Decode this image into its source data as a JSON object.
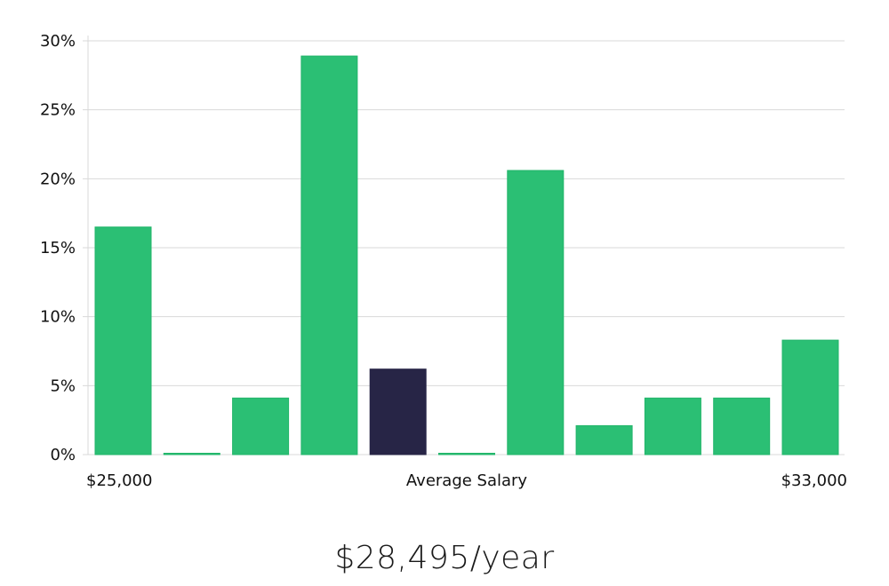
{
  "chart_data": {
    "type": "bar",
    "xlabel": "Average Salary",
    "x_min_label": "$25,000",
    "x_max_label": "$33,000",
    "ylim": [
      0,
      30
    ],
    "yticks": [
      0,
      5,
      10,
      15,
      20,
      25,
      30
    ],
    "ytick_labels": [
      "0%",
      "5%",
      "10%",
      "15%",
      "20%",
      "25%",
      "30%"
    ],
    "grid": true,
    "values": [
      16.5,
      0,
      4.1,
      28.9,
      6.2,
      0,
      20.6,
      2.1,
      4.1,
      4.1,
      8.3
    ],
    "highlight_index": 4,
    "colors": {
      "bar": "#2bbf74",
      "bar_edge": "#22b56a",
      "highlight": "#272546",
      "grid": "#d9d9d9"
    }
  },
  "salary": {
    "value": "$28,495/year"
  }
}
